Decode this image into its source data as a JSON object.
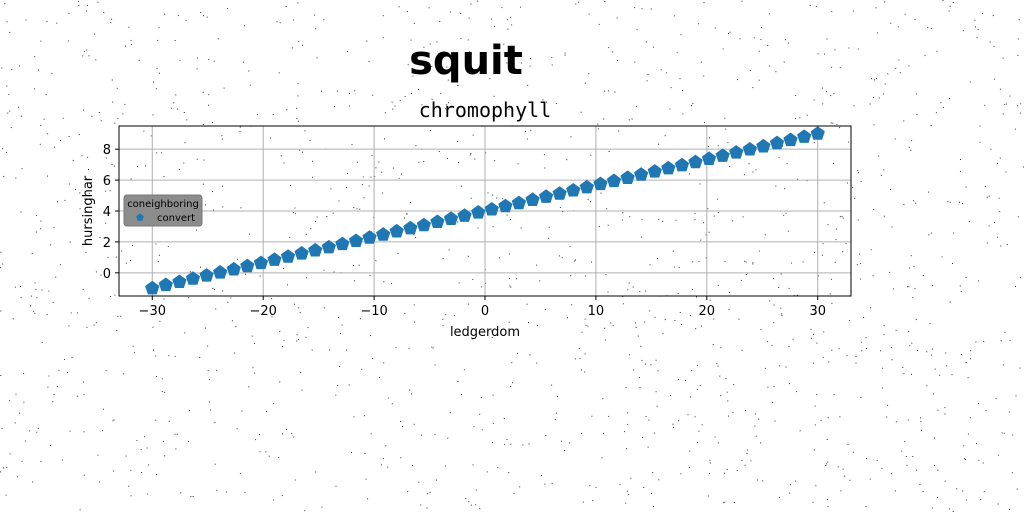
{
  "chart_data": {
    "type": "scatter",
    "suptitle": "squit",
    "title": "chromophyll",
    "xlabel": "ledgerdom",
    "ylabel": "hursinghar",
    "xlim": [
      -33,
      33
    ],
    "ylim": [
      -1.5,
      9.5
    ],
    "xticks": [
      -30,
      -20,
      -10,
      0,
      10,
      20,
      30
    ],
    "yticks": [
      0,
      2,
      4,
      6,
      8
    ],
    "xtick_labels": [
      "−30",
      "−20",
      "−10",
      "0",
      "10",
      "20",
      "30"
    ],
    "ytick_labels": [
      "0",
      "2",
      "4",
      "6",
      "8"
    ],
    "grid": true,
    "legend": {
      "title": "coneighboring",
      "placement": "center-left"
    },
    "colors": {
      "series": "#1f77b4",
      "grid": "#b0b0b0",
      "legend_bg": "#8c8c8c"
    },
    "marker": "pentagon",
    "series": [
      {
        "name": "convert",
        "x": [
          -30,
          -28.78,
          -27.55,
          -26.33,
          -25.1,
          -23.88,
          -22.65,
          -21.43,
          -20.2,
          -18.98,
          -17.76,
          -16.53,
          -15.31,
          -14.08,
          -12.86,
          -11.63,
          -10.41,
          -9.18,
          -7.96,
          -6.73,
          -5.51,
          -4.29,
          -3.06,
          -1.84,
          -0.61,
          0.61,
          1.84,
          3.06,
          4.29,
          5.51,
          6.73,
          7.96,
          9.18,
          10.41,
          11.63,
          12.86,
          14.08,
          15.31,
          16.53,
          17.76,
          18.98,
          20.2,
          21.43,
          22.65,
          23.88,
          25.1,
          26.33,
          27.55,
          28.78,
          30
        ],
        "y": [
          -1.0,
          -0.79,
          -0.59,
          -0.38,
          -0.18,
          0.02,
          0.22,
          0.43,
          0.63,
          0.84,
          1.04,
          1.25,
          1.45,
          1.65,
          1.86,
          2.06,
          2.27,
          2.47,
          2.68,
          2.88,
          3.08,
          3.29,
          3.49,
          3.69,
          3.9,
          4.1,
          4.31,
          4.51,
          4.72,
          4.92,
          5.12,
          5.33,
          5.53,
          5.74,
          5.94,
          6.14,
          6.35,
          6.55,
          6.76,
          6.96,
          7.16,
          7.37,
          7.57,
          7.78,
          7.98,
          8.18,
          8.39,
          8.59,
          8.8,
          9.0
        ]
      }
    ]
  }
}
